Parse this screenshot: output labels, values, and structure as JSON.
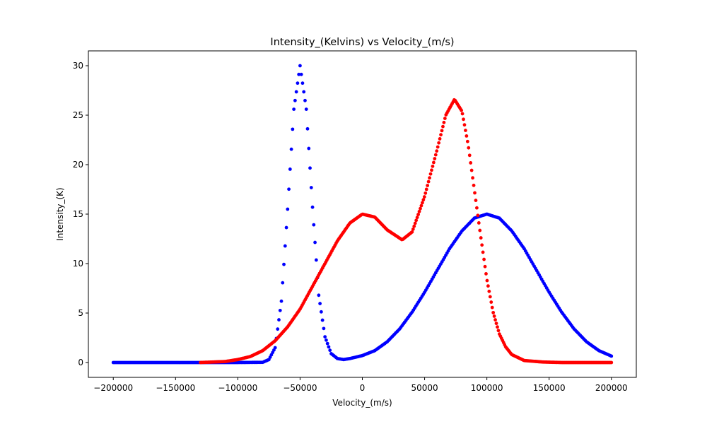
{
  "chart_data": {
    "type": "scatter",
    "title": "Intensity_(Kelvins) vs Velocity_(m/s)",
    "xlabel": "Velocity_(m/s)",
    "ylabel": "Intensity_(K)",
    "xlim": [
      -220000,
      220000
    ],
    "ylim": [
      -1.5,
      31.5
    ],
    "xticks": [
      -200000,
      -150000,
      -100000,
      -50000,
      0,
      50000,
      100000,
      150000,
      200000
    ],
    "xtick_labels": [
      "−200000",
      "−150000",
      "−100000",
      "−50000",
      "0",
      "50000",
      "100000",
      "150000",
      "200000"
    ],
    "yticks": [
      0,
      5,
      10,
      15,
      20,
      25,
      30
    ],
    "ytick_labels": [
      "0",
      "5",
      "10",
      "15",
      "20",
      "25",
      "30"
    ],
    "grid": false,
    "series": [
      {
        "color": "#0000ff",
        "x_range": [
          -200000,
          200000
        ],
        "points": [
          [
            -200000,
            0.0
          ],
          [
            -150000,
            0.0
          ],
          [
            -100000,
            0.0
          ],
          [
            -80000,
            0.02
          ],
          [
            -75000,
            0.3
          ],
          [
            -70000,
            1.5
          ],
          [
            -65000,
            6.2
          ],
          [
            -60000,
            15.5
          ],
          [
            -55000,
            25.6
          ],
          [
            -50000,
            30.0
          ],
          [
            -45000,
            25.6
          ],
          [
            -40000,
            15.7
          ],
          [
            -35000,
            6.8
          ],
          [
            -30000,
            2.6
          ],
          [
            -25000,
            0.9
          ],
          [
            -20000,
            0.4
          ],
          [
            -15000,
            0.3
          ],
          [
            -10000,
            0.4
          ],
          [
            0,
            0.7
          ],
          [
            10000,
            1.2
          ],
          [
            20000,
            2.1
          ],
          [
            30000,
            3.4
          ],
          [
            40000,
            5.1
          ],
          [
            50000,
            7.1
          ],
          [
            60000,
            9.3
          ],
          [
            70000,
            11.5
          ],
          [
            80000,
            13.3
          ],
          [
            90000,
            14.6
          ],
          [
            100000,
            15.0
          ],
          [
            110000,
            14.6
          ],
          [
            120000,
            13.3
          ],
          [
            130000,
            11.5
          ],
          [
            140000,
            9.3
          ],
          [
            150000,
            7.1
          ],
          [
            160000,
            5.1
          ],
          [
            170000,
            3.4
          ],
          [
            180000,
            2.1
          ],
          [
            190000,
            1.2
          ],
          [
            200000,
            0.65
          ]
        ]
      },
      {
        "color": "#ff0000",
        "x_range": [
          -130000,
          200000
        ],
        "points": [
          [
            -130000,
            0.0
          ],
          [
            -110000,
            0.1
          ],
          [
            -100000,
            0.3
          ],
          [
            -90000,
            0.6
          ],
          [
            -80000,
            1.2
          ],
          [
            -70000,
            2.2
          ],
          [
            -60000,
            3.6
          ],
          [
            -50000,
            5.4
          ],
          [
            -40000,
            7.7
          ],
          [
            -30000,
            10.0
          ],
          [
            -20000,
            12.3
          ],
          [
            -10000,
            14.1
          ],
          [
            0,
            15.0
          ],
          [
            10000,
            14.7
          ],
          [
            20000,
            13.4
          ],
          [
            32000,
            12.4
          ],
          [
            40000,
            13.2
          ],
          [
            50000,
            16.8
          ],
          [
            60000,
            21.5
          ],
          [
            67000,
            25.0
          ],
          [
            74000,
            26.6
          ],
          [
            80000,
            25.4
          ],
          [
            85000,
            22.0
          ],
          [
            90000,
            17.4
          ],
          [
            95000,
            12.8
          ],
          [
            100000,
            8.4
          ],
          [
            105000,
            5.1
          ],
          [
            110000,
            2.9
          ],
          [
            115000,
            1.6
          ],
          [
            120000,
            0.8
          ],
          [
            130000,
            0.2
          ],
          [
            145000,
            0.05
          ],
          [
            160000,
            0.0
          ],
          [
            200000,
            0.0
          ]
        ]
      }
    ]
  }
}
